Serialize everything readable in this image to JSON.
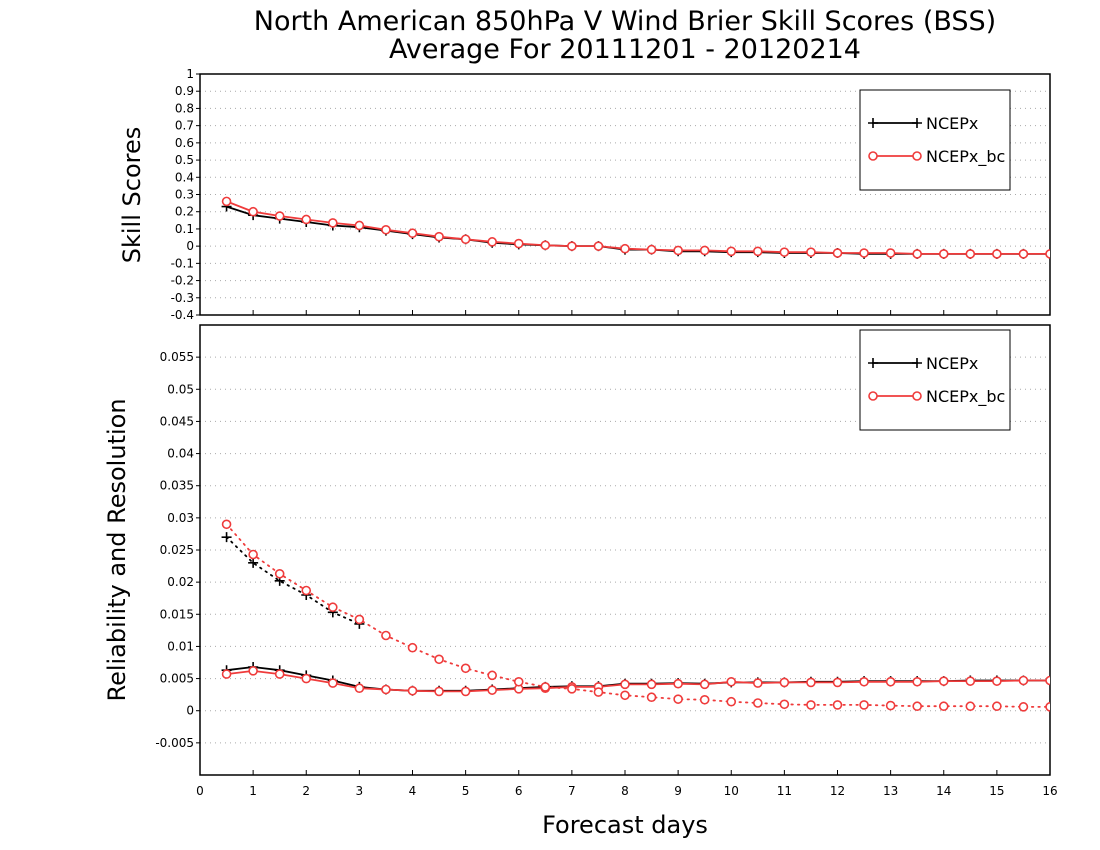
{
  "figure": {
    "title_line1": "North American 850hPa V Wind Brier Skill Scores (BSS)",
    "title_line2": "Average For 20111201 - 20120214",
    "xlabel": "Forecast days"
  },
  "colors": {
    "NCEPx": "#000000",
    "NCEPx_bc": "#ef3b3b",
    "grid": "#aaaaaa"
  },
  "chart_data": [
    {
      "type": "line",
      "title": "",
      "xlabel": "",
      "ylabel": "Skill Scores",
      "xlim": [
        0,
        16
      ],
      "ylim": [
        -0.4,
        1.0
      ],
      "xticks": [
        0,
        1,
        2,
        3,
        4,
        5,
        6,
        7,
        8,
        9,
        10,
        11,
        12,
        13,
        14,
        15,
        16
      ],
      "yticks": [
        -0.4,
        -0.3,
        -0.2,
        -0.1,
        0,
        0.1,
        0.2,
        0.3,
        0.4,
        0.5,
        0.6,
        0.7,
        0.8,
        0.9,
        1
      ],
      "ytick_labels": [
        "-0.4",
        "-0.3",
        "-0.2",
        "-0.1",
        "0",
        "0.1",
        "0.2",
        "0.3",
        "0.4",
        "0.5",
        "0.6",
        "0.7",
        "0.8",
        "0.9",
        "1"
      ],
      "grid": true,
      "legend": {
        "position": "top-right",
        "entries": [
          "NCEPx",
          "NCEPx_bc"
        ]
      },
      "series": [
        {
          "name": "NCEPx",
          "marker": "plus",
          "style": "solid",
          "color": "#000000",
          "x": [
            0.5,
            1,
            1.5,
            2,
            2.5,
            3,
            3.5,
            4,
            4.5,
            5,
            5.5,
            6,
            6.5,
            7,
            7.5,
            8,
            8.5,
            9,
            9.5,
            10,
            10.5,
            11,
            11.5,
            12,
            12.5,
            13,
            13.5,
            14,
            14.5,
            15,
            15.5,
            16
          ],
          "y": [
            0.23,
            0.18,
            0.16,
            0.14,
            0.12,
            0.11,
            0.09,
            0.07,
            0.05,
            0.04,
            0.02,
            0.01,
            0.005,
            0,
            0,
            -0.02,
            -0.02,
            -0.03,
            -0.03,
            -0.035,
            -0.035,
            -0.04,
            -0.04,
            -0.04,
            -0.045,
            -0.045,
            -0.045,
            -0.045,
            -0.045,
            -0.045,
            -0.045,
            -0.045
          ]
        },
        {
          "name": "NCEPx_bc",
          "marker": "circle",
          "style": "solid",
          "color": "#ef3b3b",
          "x": [
            0.5,
            1,
            1.5,
            2,
            2.5,
            3,
            3.5,
            4,
            4.5,
            5,
            5.5,
            6,
            6.5,
            7,
            7.5,
            8,
            8.5,
            9,
            9.5,
            10,
            10.5,
            11,
            11.5,
            12,
            12.5,
            13,
            13.5,
            14,
            14.5,
            15,
            15.5,
            16
          ],
          "y": [
            0.26,
            0.2,
            0.175,
            0.155,
            0.135,
            0.12,
            0.095,
            0.075,
            0.055,
            0.04,
            0.025,
            0.015,
            0.005,
            0,
            0,
            -0.015,
            -0.02,
            -0.025,
            -0.025,
            -0.03,
            -0.03,
            -0.035,
            -0.035,
            -0.04,
            -0.04,
            -0.04,
            -0.045,
            -0.045,
            -0.045,
            -0.045,
            -0.045,
            -0.045
          ]
        }
      ]
    },
    {
      "type": "line",
      "title": "",
      "xlabel": "Forecast days",
      "ylabel": "Reliability and Resolution",
      "xlim": [
        0,
        16
      ],
      "ylim": [
        -0.01,
        0.06
      ],
      "xticks": [
        0,
        1,
        2,
        3,
        4,
        5,
        6,
        7,
        8,
        9,
        10,
        11,
        12,
        13,
        14,
        15,
        16
      ],
      "yticks": [
        -0.005,
        0,
        0.005,
        0.01,
        0.015,
        0.02,
        0.025,
        0.03,
        0.035,
        0.04,
        0.045,
        0.05,
        0.055
      ],
      "ytick_labels": [
        "-0.005",
        "0",
        "0.005",
        "0.01",
        "0.015",
        "0.02",
        "0.025",
        "0.03",
        "0.035",
        "0.04",
        "0.045",
        "0.05",
        "0.055"
      ],
      "grid": true,
      "legend": {
        "position": "top-right",
        "entries": [
          "NCEPx",
          "NCEPx_bc"
        ]
      },
      "series": [
        {
          "name": "NCEPx",
          "marker": "plus",
          "style": "solid",
          "color": "#000000",
          "x": [
            0.5,
            1,
            1.5,
            2,
            2.5,
            3,
            3.5,
            4,
            4.5,
            5,
            5.5,
            6,
            6.5,
            7,
            7.5,
            8,
            8.5,
            9,
            9.5,
            10,
            10.5,
            11,
            11.5,
            12,
            12.5,
            13,
            13.5,
            14,
            14.5,
            15,
            15.5,
            16
          ],
          "y": [
            0.0063,
            0.0068,
            0.0063,
            0.0055,
            0.0047,
            0.0037,
            0.0033,
            0.0031,
            0.0031,
            0.0031,
            0.0033,
            0.0035,
            0.0037,
            0.0038,
            0.0038,
            0.0042,
            0.0042,
            0.0043,
            0.0042,
            0.0044,
            0.0044,
            0.0044,
            0.0045,
            0.0045,
            0.0046,
            0.0046,
            0.0046,
            0.0046,
            0.0047,
            0.0047,
            0.0047,
            0.0047
          ]
        },
        {
          "name": "NCEPx_bc",
          "marker": "circle",
          "style": "solid",
          "color": "#ef3b3b",
          "x": [
            0.5,
            1,
            1.5,
            2,
            2.5,
            3,
            3.5,
            4,
            4.5,
            5,
            5.5,
            6,
            6.5,
            7,
            7.5,
            8,
            8.5,
            9,
            9.5,
            10,
            10.5,
            11,
            11.5,
            12,
            12.5,
            13,
            13.5,
            14,
            14.5,
            15,
            15.5,
            16
          ],
          "y": [
            0.0057,
            0.0062,
            0.0057,
            0.005,
            0.0043,
            0.0035,
            0.0033,
            0.0031,
            0.003,
            0.003,
            0.0032,
            0.0034,
            0.0035,
            0.0037,
            0.0037,
            0.0041,
            0.0041,
            0.0042,
            0.0041,
            0.0045,
            0.0043,
            0.0044,
            0.0044,
            0.0044,
            0.0045,
            0.0045,
            0.0045,
            0.0046,
            0.0046,
            0.0046,
            0.0047,
            0.0047
          ]
        },
        {
          "name": "",
          "marker": "plus",
          "style": "dotted",
          "color": "#000000",
          "x": [
            0.5,
            1,
            1.5,
            2,
            2.5,
            3
          ],
          "y": [
            0.027,
            0.023,
            0.0202,
            0.018,
            0.0153,
            0.0135
          ]
        },
        {
          "name": "",
          "marker": "circle",
          "style": "dotted",
          "color": "#ef3b3b",
          "x": [
            0.5,
            1,
            1.5,
            2,
            2.5,
            3,
            3.5,
            4,
            4.5,
            5,
            5.5,
            6,
            6.5,
            7,
            7.5,
            8,
            8.5,
            9,
            9.5,
            10,
            10.5,
            11,
            11.5,
            12,
            12.5,
            13,
            13.5,
            14,
            14.5,
            15,
            15.5,
            16
          ],
          "y": [
            0.029,
            0.0243,
            0.0213,
            0.0187,
            0.0161,
            0.0142,
            0.0117,
            0.0098,
            0.008,
            0.0066,
            0.0055,
            0.0045,
            0.0037,
            0.0034,
            0.0029,
            0.0024,
            0.0021,
            0.0018,
            0.0017,
            0.0014,
            0.0012,
            0.001,
            0.0009,
            0.0009,
            0.0009,
            0.0008,
            0.0007,
            0.0007,
            0.0007,
            0.0007,
            0.0006,
            0.0006
          ]
        }
      ]
    }
  ]
}
